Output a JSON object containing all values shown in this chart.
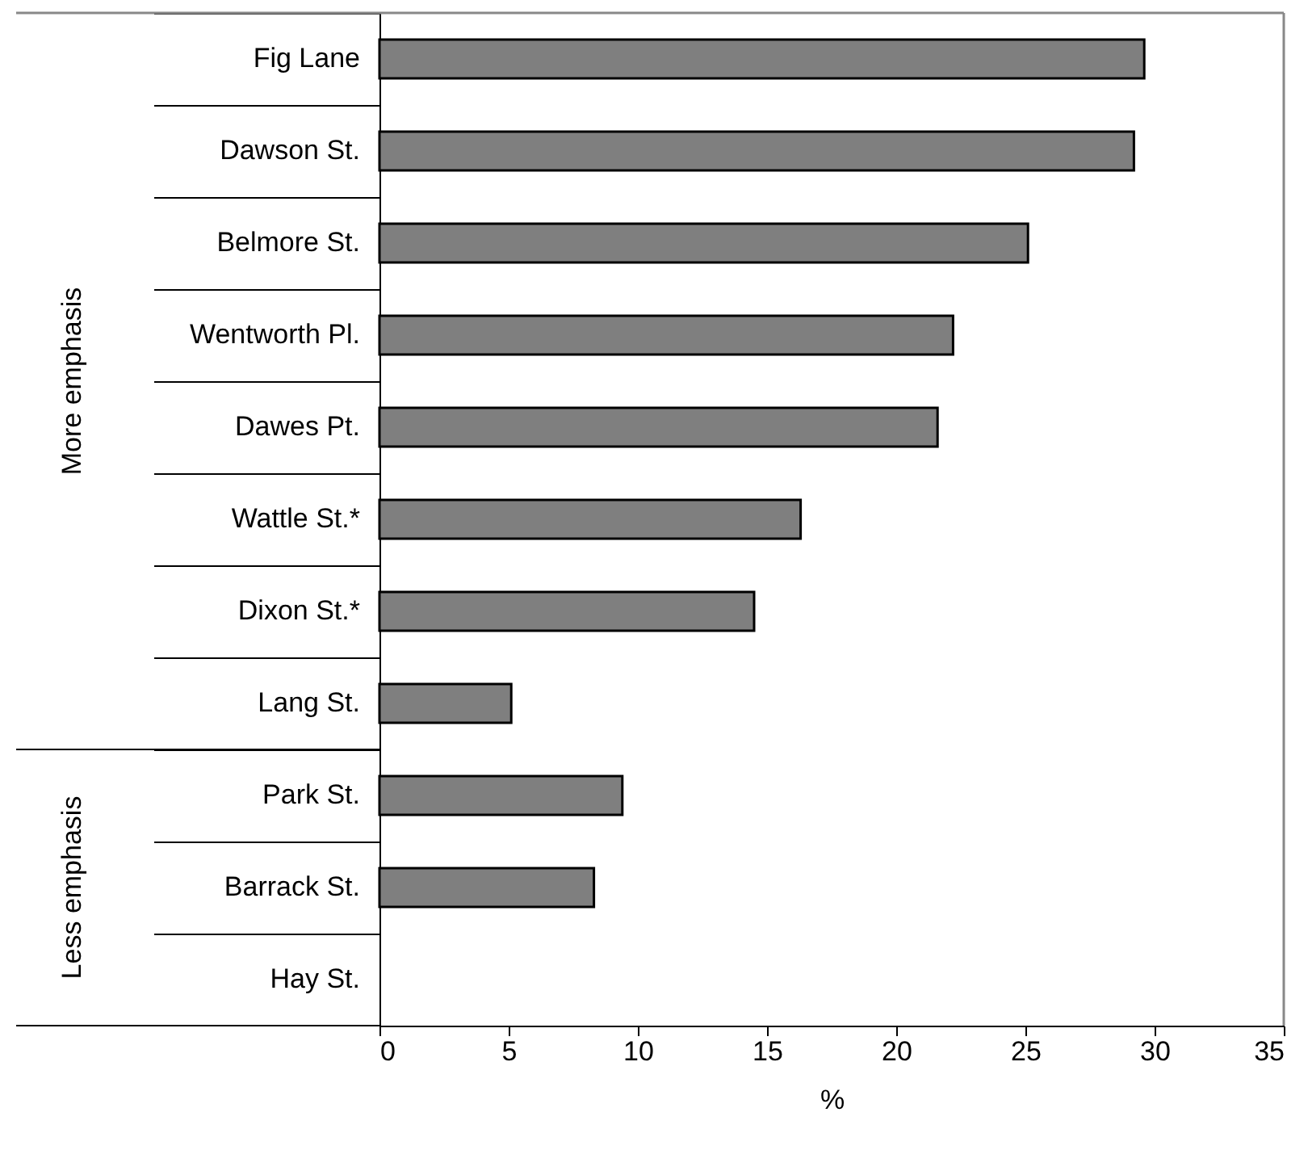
{
  "chart_data": {
    "type": "bar",
    "orientation": "horizontal",
    "categories": [
      "Fig Lane",
      "Dawson St.",
      "Belmore St.",
      "Wentworth Pl.",
      "Dawes Pt.",
      "Wattle St.*",
      "Dixon St.*",
      "Lang St.",
      "Park St.",
      "Barrack St.",
      "Hay St."
    ],
    "values": [
      29.6,
      29.2,
      25.1,
      22.2,
      21.6,
      16.3,
      14.5,
      5.1,
      9.4,
      8.3,
      0
    ],
    "color": "#7f7f7f",
    "xlim": [
      0,
      35
    ],
    "xticks": [
      0,
      5,
      10,
      15,
      20,
      25,
      30,
      35
    ],
    "xlabel": "%",
    "annotations": [
      "More emphasis",
      "Less emphasis"
    ],
    "grid": false
  }
}
